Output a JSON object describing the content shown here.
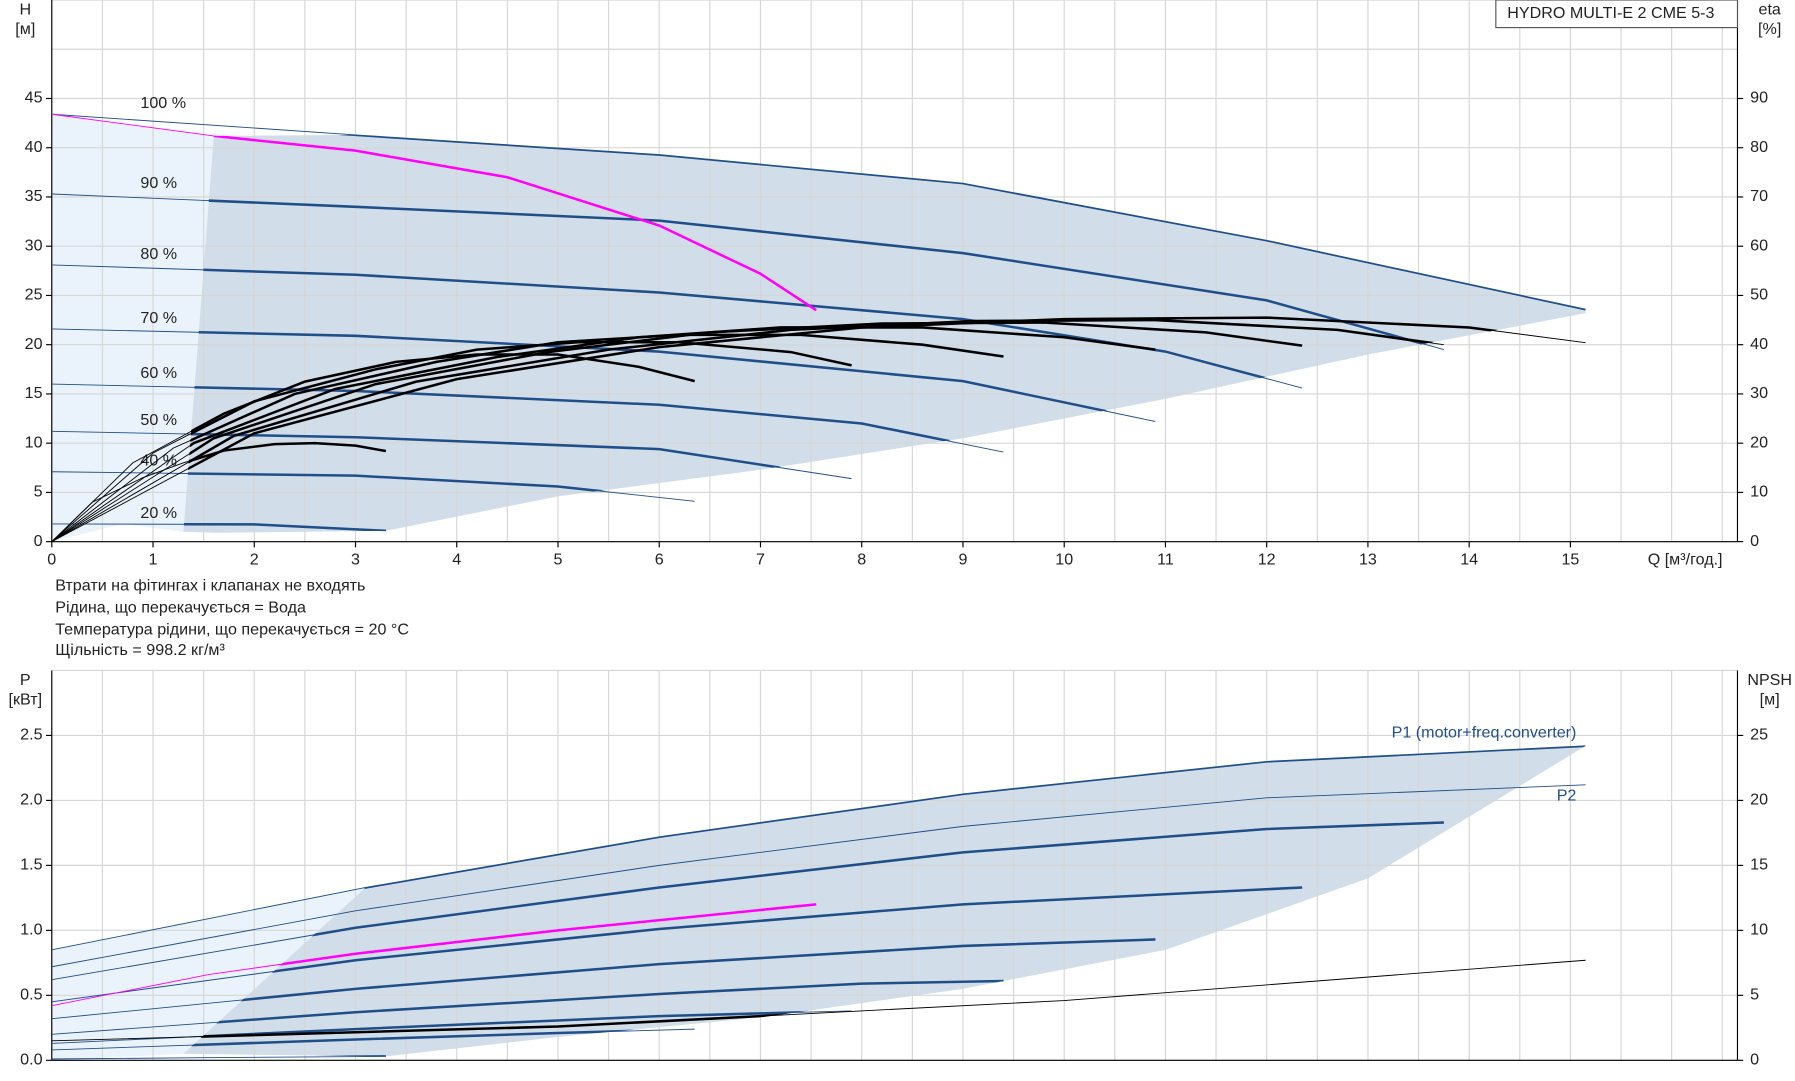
{
  "title": "HYDRO MULTI-E 2 CME 5-3",
  "notes": [
    "Втрати на фітингах і клапанах не входять",
    "Рідина, що перекачується = Вода",
    "Температура рідини, що перекачується = 20 °C",
    "Щільність = 998.2 кг/м³"
  ],
  "chart_data": [
    {
      "type": "line",
      "ylabel": "H",
      "yunit": "[м]",
      "y2label": "eta",
      "y2unit": "[%]",
      "xlabel": "Q [м³/год.]",
      "xlim": [
        0,
        16.65
      ],
      "xticks": [
        0,
        1,
        2,
        3,
        4,
        5,
        6,
        7,
        8,
        9,
        10,
        11,
        12,
        13,
        14,
        15
      ],
      "ylim": [
        0,
        55
      ],
      "yticks": [
        0,
        5,
        10,
        15,
        20,
        25,
        30,
        35,
        40,
        45
      ],
      "y2lim": [
        0,
        110
      ],
      "y2ticks": [
        0,
        10,
        20,
        30,
        40,
        50,
        60,
        70,
        80,
        90
      ],
      "grid": true,
      "areas": [
        {
          "color": "#eaf3fb",
          "x": [
            0,
            0,
            1.6,
            1.3,
            0.7
          ],
          "values": [
            0,
            43.4,
            41.2,
            1,
            1.8
          ]
        },
        {
          "color": "#d1dde9",
          "clip": true,
          "x": [
            1.6,
            3,
            6,
            9,
            12,
            15.15,
            15.15,
            13,
            11,
            9,
            7,
            5,
            3.3,
            1.6,
            1.3
          ],
          "values": [
            41.2,
            41.3,
            39.3,
            36.4,
            30.6,
            23.6,
            23.2,
            19,
            14.5,
            10.5,
            7.3,
            4.6,
            1.1,
            0.9,
            1
          ]
        }
      ],
      "series": [
        {
          "label": "100 %",
          "color": "#1f4e89",
          "x": [
            0,
            3,
            6,
            9,
            12,
            15.15
          ],
          "values": [
            43.4,
            41.3,
            39.3,
            36.4,
            30.6,
            23.6
          ]
        },
        {
          "label": "90 %",
          "color": "#1f4e89",
          "x": [
            0,
            3,
            6,
            9,
            12,
            13.75
          ],
          "values": [
            35.3,
            34,
            32.6,
            29.3,
            24.5,
            19.5
          ]
        },
        {
          "label": "80 %",
          "color": "#1f4e89",
          "x": [
            0,
            3,
            6,
            9,
            11,
            12.35
          ],
          "values": [
            28.1,
            27.1,
            25.3,
            22.6,
            19.3,
            15.6
          ]
        },
        {
          "label": "70 %",
          "color": "#1f4e89",
          "x": [
            0,
            3,
            6,
            9,
            10.9
          ],
          "values": [
            21.6,
            20.9,
            19.3,
            16.3,
            12.2
          ]
        },
        {
          "label": "60 %",
          "color": "#1f4e89",
          "x": [
            0,
            3,
            6,
            8,
            9.4
          ],
          "values": [
            16,
            15.3,
            13.9,
            12,
            9.1
          ]
        },
        {
          "label": "50 %",
          "color": "#1f4e89",
          "x": [
            0,
            3,
            6,
            7.9
          ],
          "values": [
            11.2,
            10.6,
            9.4,
            6.4
          ]
        },
        {
          "label": "40 %",
          "color": "#1f4e89",
          "x": [
            0,
            3,
            5,
            6.35
          ],
          "values": [
            7.1,
            6.7,
            5.6,
            4.1
          ]
        },
        {
          "label": "20 %",
          "color": "#1f4e89",
          "x": [
            0,
            2,
            3.3
          ],
          "values": [
            1.8,
            1.75,
            1.1
          ]
        },
        {
          "axis": "y2",
          "color": "#000000",
          "x": [
            0,
            2,
            4,
            6,
            8,
            10,
            12,
            14,
            15.15
          ],
          "values": [
            0,
            22,
            33,
            39.5,
            43.5,
            45.2,
            45.5,
            43.5,
            40.4
          ]
        },
        {
          "axis": "y2",
          "color": "#000000",
          "x": [
            0,
            1.8,
            3.6,
            5.5,
            7.3,
            9.1,
            10.9,
            12.7,
            13.75
          ],
          "values": [
            0,
            21.5,
            32.5,
            39,
            43,
            44.8,
            45,
            43,
            40
          ]
        },
        {
          "axis": "y2",
          "color": "#000000",
          "x": [
            0,
            1.6,
            3.2,
            4.9,
            6.5,
            8.2,
            9.8,
            11.4,
            12.35
          ],
          "values": [
            0,
            21,
            32,
            38.5,
            42.5,
            44.3,
            44.5,
            42.5,
            39.8
          ]
        },
        {
          "axis": "y2",
          "color": "#000000",
          "x": [
            0,
            1.4,
            2.8,
            4.4,
            5.8,
            7.2,
            8.6,
            10,
            10.9
          ],
          "values": [
            0,
            20,
            31,
            37.5,
            41.5,
            43.5,
            43.5,
            41.5,
            39
          ]
        },
        {
          "axis": "y2",
          "color": "#000000",
          "x": [
            0,
            1.2,
            2.4,
            3.8,
            5,
            6.2,
            7.4,
            8.6,
            9.4
          ],
          "values": [
            0,
            19,
            30,
            36.5,
            40.5,
            42,
            42,
            40,
            37.6
          ]
        },
        {
          "axis": "y2",
          "color": "#000000",
          "x": [
            0,
            1,
            2,
            3.2,
            4.2,
            5.2,
            6.2,
            7.3,
            7.9
          ],
          "values": [
            0,
            18,
            28.5,
            35,
            39,
            40.5,
            40.5,
            38.5,
            35.8
          ]
        },
        {
          "axis": "y2",
          "color": "#000000",
          "x": [
            0,
            0.8,
            1.7,
            2.5,
            3.4,
            4.2,
            5,
            5.8,
            6.35
          ],
          "values": [
            0,
            16,
            26,
            32.5,
            36.5,
            38,
            38,
            35.5,
            32.6
          ]
        },
        {
          "axis": "y2",
          "color": "#000000",
          "x": [
            0,
            0.4,
            0.9,
            1.3,
            1.7,
            2.2,
            2.6,
            3,
            3.3
          ],
          "values": [
            0,
            8,
            13,
            16,
            18.5,
            19.8,
            20,
            19.5,
            18.4
          ]
        },
        {
          "color": "#ff00ff",
          "x": [
            0,
            1.6,
            3,
            4.5,
            6,
            7,
            7.55
          ],
          "values": [
            43.4,
            41.2,
            39.7,
            37,
            32.1,
            27.2,
            23.5
          ]
        }
      ]
    },
    {
      "type": "line",
      "ylabel": "P",
      "yunit": "[кВт]",
      "y2label": "NPSH",
      "y2unit": "[м]",
      "xlim": [
        0,
        16.65
      ],
      "ylim": [
        0,
        3
      ],
      "yticks": [
        {
          "value": 0,
          "label": "0.0"
        },
        0.5,
        {
          "value": 1,
          "label": "1.0"
        },
        1.5,
        {
          "value": 2,
          "label": "2.0"
        },
        2.5
      ],
      "y2lim": [
        0,
        30
      ],
      "y2ticks": [
        0,
        5,
        10,
        15,
        20,
        25
      ],
      "grid": true,
      "areas": [
        {
          "color": "#eaf3fb",
          "x": [
            0,
            0,
            3.1,
            1.3
          ],
          "values": [
            0,
            0.85,
            1.33,
            0.05
          ]
        },
        {
          "color": "#d1dde9",
          "clip": true,
          "x": [
            3.1,
            6,
            9,
            12,
            15.15,
            13,
            11,
            9,
            7,
            5,
            3.3,
            1.3
          ],
          "values": [
            1.33,
            1.72,
            2.05,
            2.3,
            2.42,
            1.4,
            0.85,
            0.55,
            0.33,
            0.18,
            0.03,
            0.05
          ]
        }
      ],
      "series": [
        {
          "name": "P1 (motor+freq.converter)",
          "color": "#1f4e89",
          "x": [
            0,
            3.1,
            6,
            9,
            12,
            15.15
          ],
          "values": [
            0.85,
            1.33,
            1.72,
            2.05,
            2.3,
            2.42
          ]
        },
        {
          "color": "#1f4e89",
          "x": [
            0,
            3,
            6,
            9,
            12,
            13.75
          ],
          "values": [
            0.62,
            1.02,
            1.33,
            1.6,
            1.78,
            1.83
          ]
        },
        {
          "color": "#1f4e89",
          "x": [
            0,
            3,
            6,
            9,
            12.35
          ],
          "values": [
            0.45,
            0.77,
            1.01,
            1.2,
            1.33
          ]
        },
        {
          "color": "#1f4e89",
          "x": [
            0,
            3,
            6,
            9,
            10.9
          ],
          "values": [
            0.32,
            0.55,
            0.74,
            0.88,
            0.93
          ]
        },
        {
          "color": "#1f4e89",
          "x": [
            0,
            3,
            6,
            8,
            9.4
          ],
          "values": [
            0.2,
            0.37,
            0.51,
            0.59,
            0.61
          ]
        },
        {
          "color": "#1f4e89",
          "x": [
            0,
            3,
            6,
            7.9
          ],
          "values": [
            0.13,
            0.24,
            0.34,
            0.38
          ]
        },
        {
          "color": "#1f4e89",
          "x": [
            0,
            3,
            5,
            6.35
          ],
          "values": [
            0.08,
            0.16,
            0.21,
            0.24
          ]
        },
        {
          "color": "#1f4e89",
          "x": [
            0,
            1.5,
            3.3
          ],
          "values": [
            0.01,
            0.02,
            0.03
          ]
        },
        {
          "name": "P2",
          "linestyle": "thin",
          "color": "#1f4e89",
          "x": [
            0,
            3,
            6,
            9,
            12,
            15.15
          ],
          "values": [
            0.72,
            1.15,
            1.5,
            1.8,
            2.02,
            2.12
          ]
        },
        {
          "color": "#ff00ff",
          "x": [
            0,
            1.55,
            3,
            5,
            7.55
          ],
          "values": [
            0.42,
            0.66,
            0.82,
            1.0,
            1.2
          ]
        },
        {
          "axis": "y2",
          "color": "#000000",
          "x": [
            0,
            5,
            10,
            15.15
          ],
          "values": [
            1.5,
            2.6,
            4.6,
            7.7
          ]
        }
      ]
    }
  ]
}
